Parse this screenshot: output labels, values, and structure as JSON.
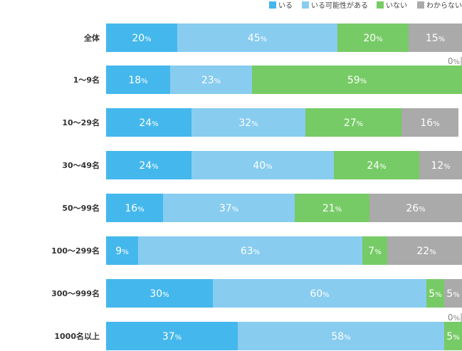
{
  "chart_data": {
    "type": "bar",
    "orientation": "horizontal",
    "stacked": "percent",
    "categories": [
      "全体",
      "1〜9名",
      "10〜29名",
      "30〜49名",
      "50〜99名",
      "100〜299名",
      "300〜999名",
      "1000名以上"
    ],
    "series": [
      {
        "name": "いる",
        "color": "#44b8ec",
        "values": [
          20,
          18,
          24,
          24,
          16,
          9,
          30,
          37
        ]
      },
      {
        "name": "いる可能性がある",
        "color": "#88ccf0",
        "values": [
          45,
          23,
          32,
          40,
          37,
          63,
          60,
          58
        ]
      },
      {
        "name": "いない",
        "color": "#77cb66",
        "values": [
          20,
          59,
          27,
          24,
          21,
          7,
          5,
          5
        ]
      },
      {
        "name": "わからない",
        "color": "#aaaaaa",
        "values": [
          15,
          0,
          16,
          12,
          26,
          22,
          5,
          0
        ]
      }
    ],
    "value_suffix": "%",
    "xlim": [
      0,
      100
    ],
    "legend_position": "top-right",
    "grid": false,
    "title": "",
    "xlabel": "",
    "ylabel": ""
  }
}
